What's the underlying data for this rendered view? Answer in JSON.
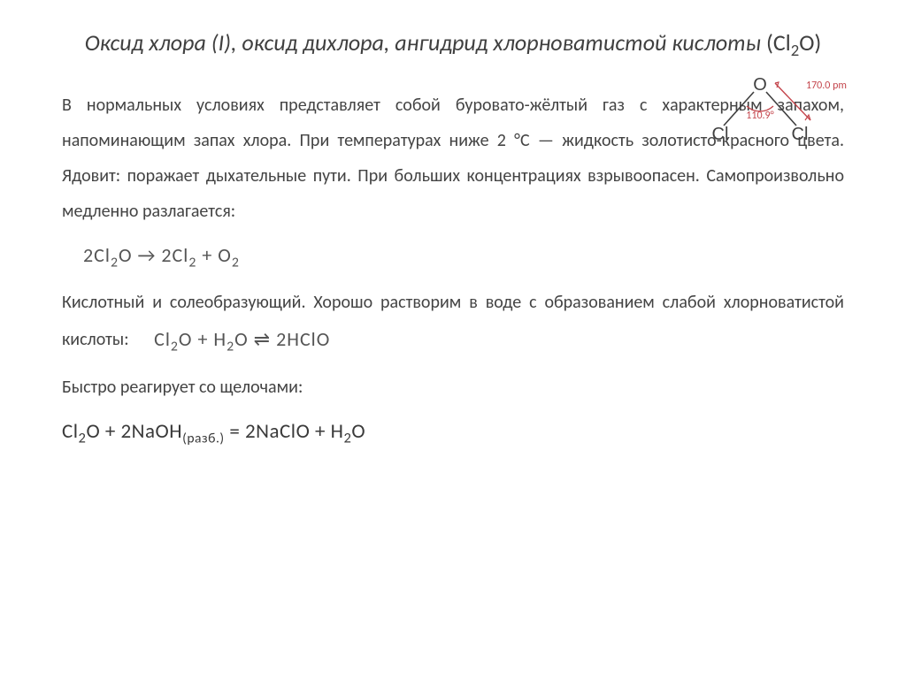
{
  "title": {
    "italic_part": "Оксид хлора (I), оксид дихлора, ангидрид хлорноватистой кислоты",
    "formula_html": "(Cl<sub>2</sub>O)"
  },
  "molecule": {
    "left_atom": "Cl",
    "center_atom": "O",
    "right_atom": "Cl",
    "angle_label": "110.9°",
    "bond_length_label": "170.0 pm",
    "atom_color": "#404040",
    "bond_color": "#404040",
    "annotation_color": "#c4464d",
    "atom_fontsize": 20,
    "label_fontsize": 12
  },
  "paragraphs": {
    "p1": "В нормальных условиях представляет собой буровато-жёлтый газ с характерным запахом, напоминающим запах хлора. При температурах ниже 2 °С — жидкость золотисто-красного цвета. Ядовит: поражает дыхательные пути. При больших концентрациях взрывоопасен. Самопроизвольно медленно разлагается:",
    "p2_before": "Кислотный и солеобразующий. Хорошо растворим в воде с образованием слабой хлорноватистой кислоты:",
    "p3": "Быстро реагирует со щелочами:"
  },
  "equations": {
    "decomposition_html": "2Cl<sub>2</sub>O → 2Cl<sub>2</sub> + O<sub>2</sub>",
    "hydrolysis_html": "Cl<sub>2</sub>O + H<sub>2</sub>O ⇌ 2HClO",
    "alkali_html": "Cl<sub>2</sub>O + 2NaOH<span class=\"sub-note\">(разб.)</span> = 2NaClO + H<sub>2</sub>O"
  },
  "colors": {
    "text": "#3a3a3a",
    "equation_text": "#555555",
    "background": "#ffffff"
  },
  "typography": {
    "title_fontsize": 26,
    "body_fontsize": 20,
    "eq_fontsize": 22
  }
}
